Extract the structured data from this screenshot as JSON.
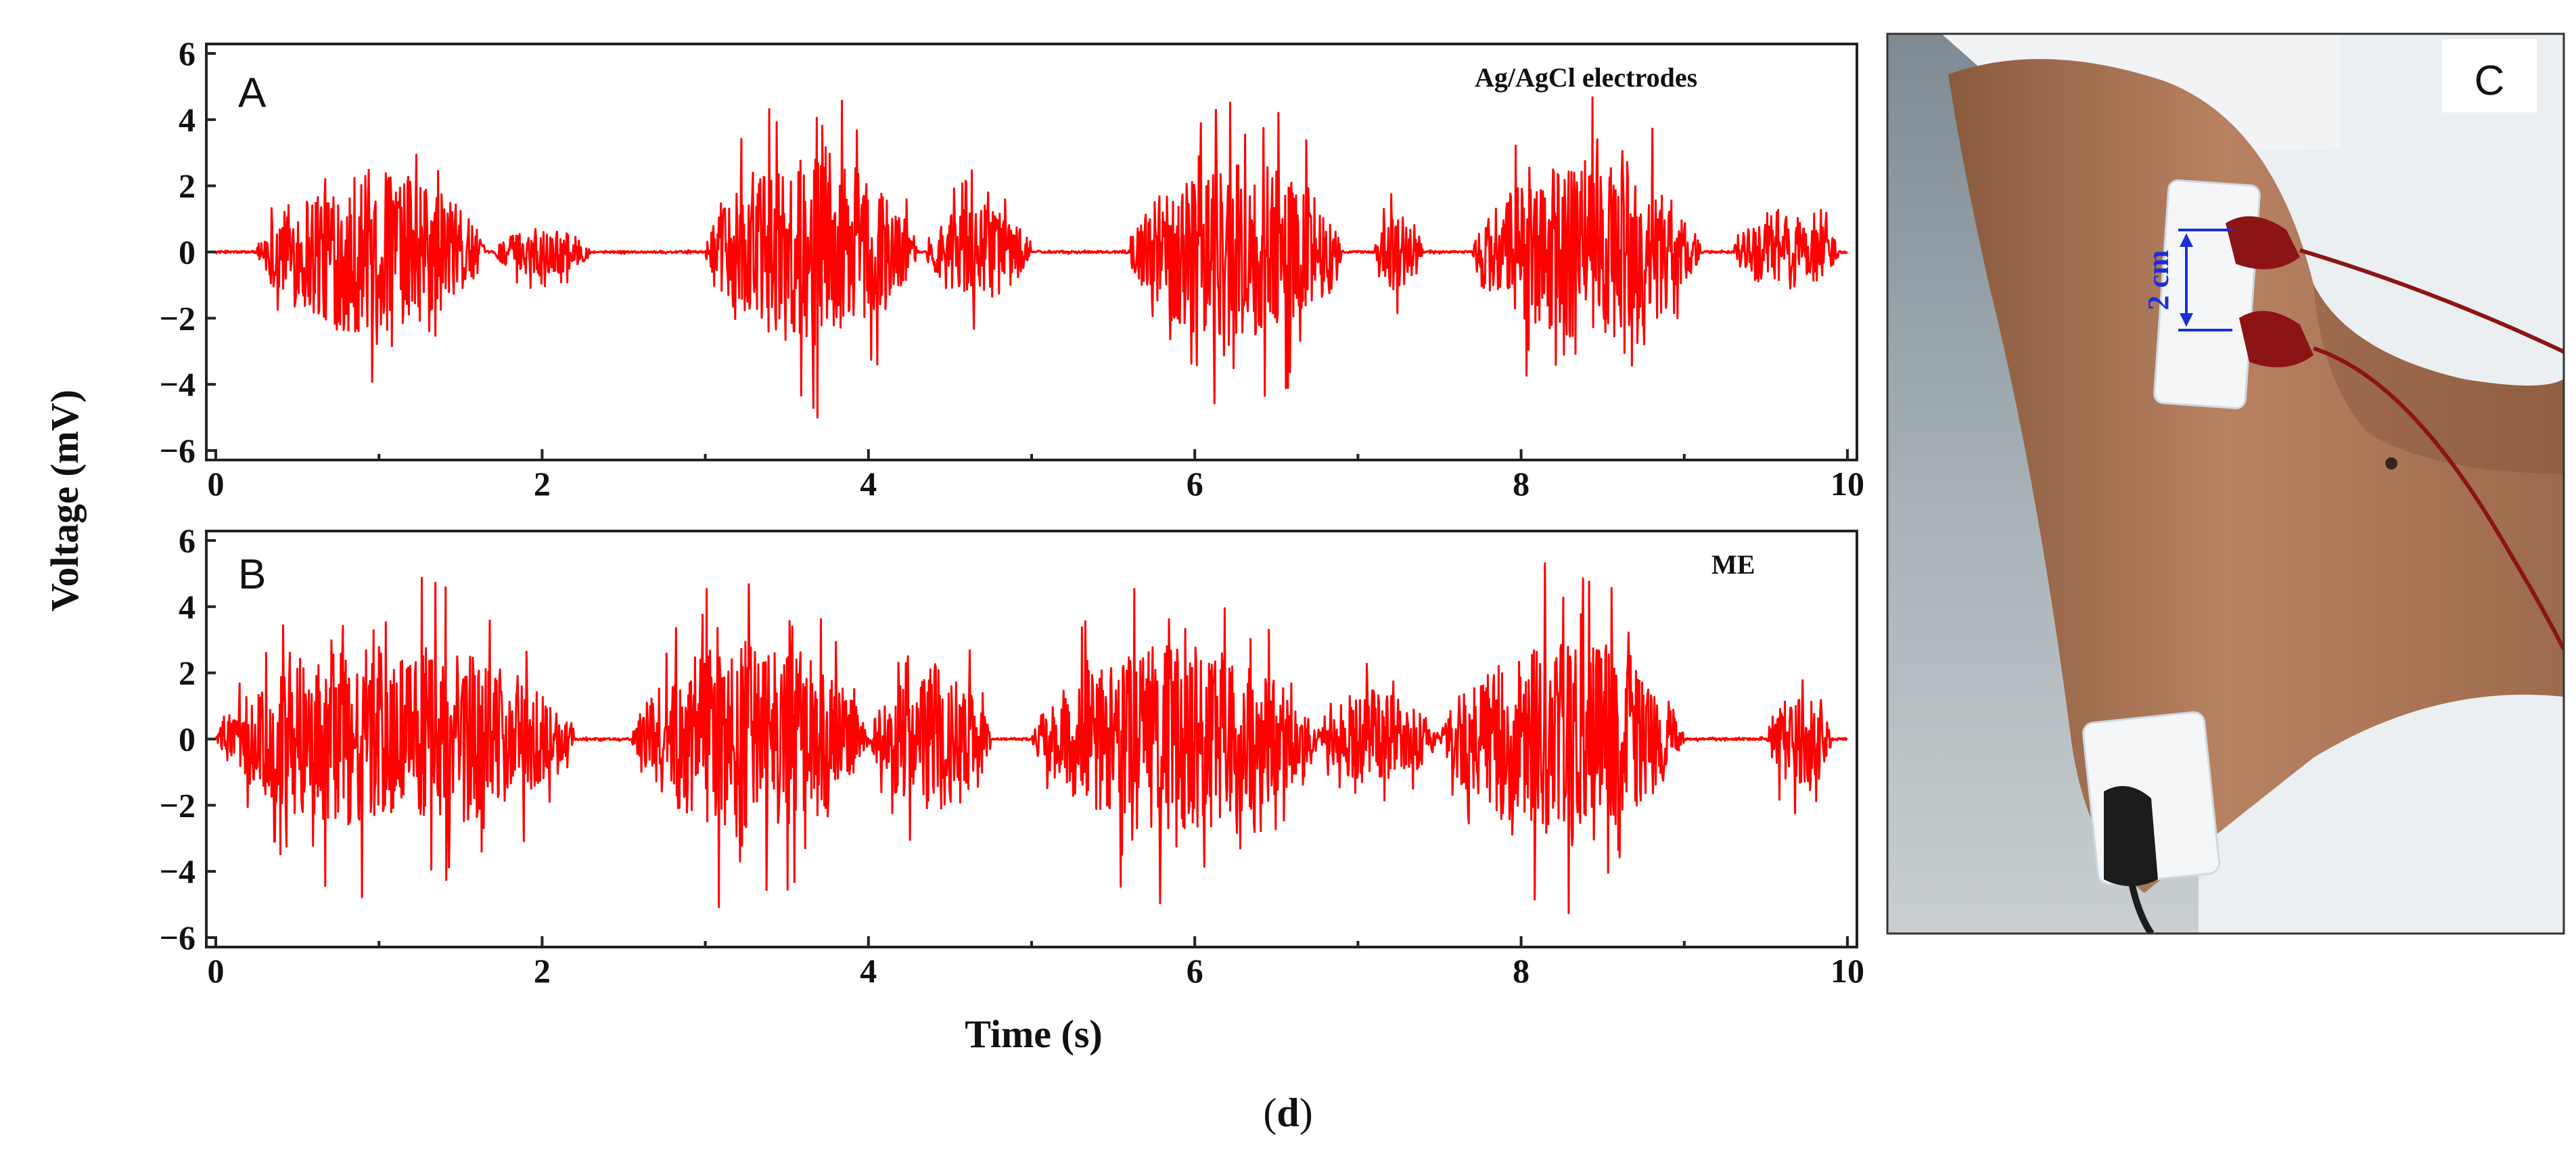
{
  "figure": {
    "caption_open": "(",
    "caption_letter": "d",
    "caption_close": ")",
    "shared_xlabel": "Time (s)",
    "shared_ylabel": "Voltage (mV)"
  },
  "chart_data": [
    {
      "panel": "A",
      "type": "line",
      "annotation": "Ag/AgCl electrodes",
      "xlim": [
        0,
        10
      ],
      "ylim": [
        -6,
        6
      ],
      "xticks": [
        0,
        2,
        4,
        6,
        8,
        10
      ],
      "yticks": [
        6,
        4,
        2,
        0,
        -2,
        -4,
        -6
      ],
      "ytick_labels": [
        "6",
        "4",
        "2",
        "0",
        "−2",
        "−4",
        "−6"
      ],
      "color": "#ff0000",
      "grid": false,
      "bursts": [
        {
          "start": 0.25,
          "end": 1.65,
          "peak_mV": 4.6
        },
        {
          "start": 1.7,
          "end": 2.3,
          "peak_mV": 1.3
        },
        {
          "start": 3.0,
          "end": 4.3,
          "peak_mV": 5.2
        },
        {
          "start": 4.35,
          "end": 5.0,
          "peak_mV": 2.6
        },
        {
          "start": 5.6,
          "end": 6.9,
          "peak_mV": 5.2
        },
        {
          "start": 7.1,
          "end": 7.4,
          "peak_mV": 2.2
        },
        {
          "start": 7.7,
          "end": 9.1,
          "peak_mV": 5.0
        },
        {
          "start": 9.3,
          "end": 9.95,
          "peak_mV": 2.2
        }
      ]
    },
    {
      "panel": "B",
      "type": "line",
      "annotation": "ME",
      "xlim": [
        0,
        10
      ],
      "ylim": [
        -6,
        6
      ],
      "xticks": [
        0,
        2,
        4,
        6,
        8,
        10
      ],
      "yticks": [
        6,
        4,
        2,
        0,
        -2,
        -4,
        -6
      ],
      "ytick_labels": [
        "6",
        "4",
        "2",
        "0",
        "−2",
        "−4",
        "−6"
      ],
      "color": "#ff0000",
      "grid": false,
      "bursts": [
        {
          "start": 0.0,
          "end": 2.2,
          "peak_mV": 5.2
        },
        {
          "start": 2.55,
          "end": 4.0,
          "peak_mV": 5.4
        },
        {
          "start": 4.0,
          "end": 4.75,
          "peak_mV": 4.0
        },
        {
          "start": 5.0,
          "end": 6.75,
          "peak_mV": 5.2
        },
        {
          "start": 6.75,
          "end": 7.5,
          "peak_mV": 2.5
        },
        {
          "start": 7.5,
          "end": 9.0,
          "peak_mV": 5.4
        },
        {
          "start": 9.5,
          "end": 9.9,
          "peak_mV": 2.5
        }
      ]
    }
  ],
  "photo": {
    "panel": "C",
    "measurement_label": "2 cm"
  }
}
